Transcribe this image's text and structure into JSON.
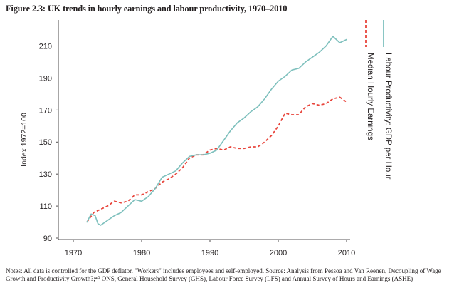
{
  "chart_data": {
    "type": "line",
    "title": "Figure 2.3: UK trends in hourly earnings and labour productivity, 1970–2010",
    "ylabel": "Index 1972=100",
    "xlabel": "",
    "xlim": [
      1970,
      2010
    ],
    "ylim": [
      90,
      220
    ],
    "x_ticks": [
      1970,
      1980,
      1990,
      2000,
      2010
    ],
    "y_ticks": [
      90,
      110,
      130,
      150,
      170,
      190,
      210
    ],
    "grid": false,
    "legend_position": "right (rotated)",
    "series": [
      {
        "name": "Labour Productivity: GDP per Hour",
        "style": "solid",
        "color": "#7ec0bd",
        "points": [
          [
            1972,
            100
          ],
          [
            1972.6,
            105
          ],
          [
            1973.2,
            104
          ],
          [
            1973.6,
            99
          ],
          [
            1974,
            98
          ],
          [
            1975,
            101
          ],
          [
            1976,
            104
          ],
          [
            1977,
            106
          ],
          [
            1978,
            110
          ],
          [
            1979,
            114
          ],
          [
            1980,
            113
          ],
          [
            1981,
            116
          ],
          [
            1982,
            121
          ],
          [
            1983,
            128
          ],
          [
            1984,
            130
          ],
          [
            1985,
            132
          ],
          [
            1986,
            137
          ],
          [
            1987,
            141
          ],
          [
            1988,
            142
          ],
          [
            1989,
            142
          ],
          [
            1990,
            143
          ],
          [
            1991,
            145
          ],
          [
            1992,
            151
          ],
          [
            1993,
            157
          ],
          [
            1994,
            162
          ],
          [
            1995,
            165
          ],
          [
            1996,
            169
          ],
          [
            1997,
            172
          ],
          [
            1998,
            177
          ],
          [
            1999,
            183
          ],
          [
            2000,
            188
          ],
          [
            2001,
            191
          ],
          [
            2002,
            195
          ],
          [
            2003,
            196
          ],
          [
            2004,
            200
          ],
          [
            2005,
            203
          ],
          [
            2006,
            206
          ],
          [
            2007,
            210
          ],
          [
            2008,
            216
          ],
          [
            2009,
            212
          ],
          [
            2010,
            214
          ]
        ]
      },
      {
        "name": "Median Hourly Earnings",
        "style": "dashed",
        "color": "#e8453c",
        "points": [
          [
            1972,
            100
          ],
          [
            1973,
            106
          ],
          [
            1974,
            108
          ],
          [
            1975,
            110
          ],
          [
            1976,
            113
          ],
          [
            1977,
            112
          ],
          [
            1978,
            113
          ],
          [
            1979,
            117
          ],
          [
            1980,
            117
          ],
          [
            1981,
            119
          ],
          [
            1982,
            121
          ],
          [
            1983,
            125
          ],
          [
            1984,
            127
          ],
          [
            1985,
            130
          ],
          [
            1986,
            134
          ],
          [
            1987,
            140
          ],
          [
            1988,
            142
          ],
          [
            1989,
            142
          ],
          [
            1990,
            145
          ],
          [
            1991,
            146
          ],
          [
            1992,
            145
          ],
          [
            1993,
            147
          ],
          [
            1994,
            146
          ],
          [
            1995,
            146
          ],
          [
            1996,
            147
          ],
          [
            1997,
            147
          ],
          [
            1998,
            150
          ],
          [
            1999,
            154
          ],
          [
            2000,
            160
          ],
          [
            2001,
            168
          ],
          [
            2002,
            167
          ],
          [
            2003,
            167
          ],
          [
            2004,
            172
          ],
          [
            2005,
            174
          ],
          [
            2006,
            173
          ],
          [
            2007,
            174
          ],
          [
            2008,
            177
          ],
          [
            2009,
            178
          ],
          [
            2010,
            175
          ]
        ]
      }
    ]
  },
  "notes": "Notes: All data is controlled for the GDP deflator. \"Workers\" includes employees and self-employed. Source: Analysis from Pessoa and Van Reenen, Decoupling of Wage Growth and Productivity Growth?;⁴⁰ ONS, General Household Survey (GHS), Labour Force Survey (LFS) and Annual Survey of Hours and Earnings (ASHE)"
}
